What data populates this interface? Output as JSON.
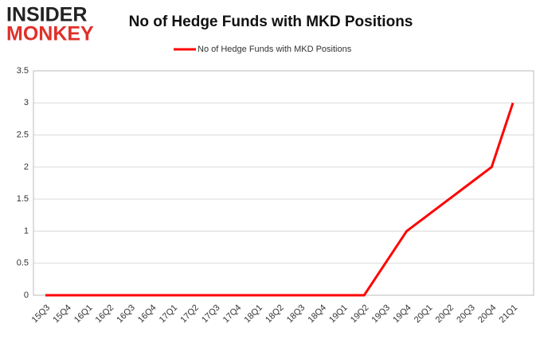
{
  "logo": {
    "line1": "INSIDER",
    "line2": "MONKEY"
  },
  "chart_data": {
    "type": "line",
    "title": "No of Hedge Funds with MKD Positions",
    "categories": [
      "15Q3",
      "15Q4",
      "16Q1",
      "16Q2",
      "16Q3",
      "16Q4",
      "17Q1",
      "17Q2",
      "17Q3",
      "17Q4",
      "18Q1",
      "18Q2",
      "18Q3",
      "18Q4",
      "19Q1",
      "19Q2",
      "19Q3",
      "19Q4",
      "20Q1",
      "20Q2",
      "20Q3",
      "20Q4",
      "21Q1"
    ],
    "series": [
      {
        "name": "No of Hedge Funds with MKD Positions",
        "color": "#ff0000",
        "values": [
          0,
          0,
          0,
          0,
          0,
          0,
          0,
          0,
          0,
          0,
          0,
          0,
          0,
          0,
          0,
          0,
          0.5,
          1,
          1.25,
          1.5,
          1.75,
          2,
          3
        ]
      }
    ],
    "ylim": [
      0,
      3.5
    ],
    "yticks": [
      0,
      0.5,
      1,
      1.5,
      2,
      2.5,
      3,
      3.5
    ],
    "grid": true,
    "legend": "top"
  }
}
